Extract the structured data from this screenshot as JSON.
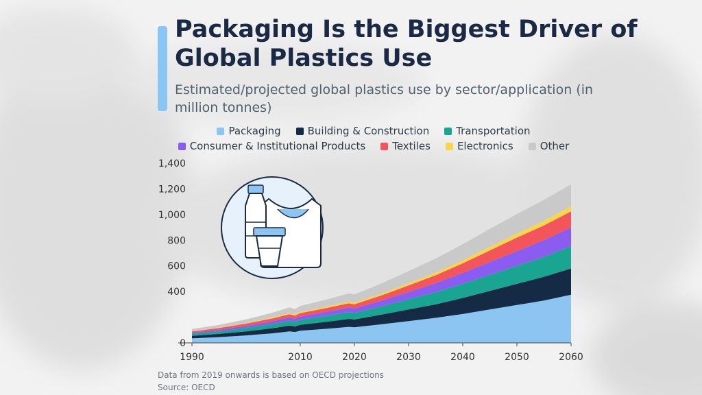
{
  "title": "Packaging Is the Biggest Driver of Global Plastics Use",
  "subtitle": "Estimated/projected global plastics use by sector/application (in million tonnes)",
  "footnote": "Data from 2019 onwards is based on OECD projections",
  "source": "Source: OECD",
  "colors": {
    "Packaging": "#8cc4f2",
    "Building & Construction": "#142a45",
    "Transportation": "#1aa592",
    "Consumer & Institutional Products": "#8b5cf0",
    "Textiles": "#f2565a",
    "Electronics": "#f7d64a",
    "Other": "#c9c9c9"
  },
  "chart_data": {
    "type": "area",
    "stacked": true,
    "title": "Packaging Is the Biggest Driver of Global Plastics Use",
    "ylabel": "",
    "xlim": [
      1990,
      2060
    ],
    "ylim": [
      0,
      1400
    ],
    "yticks": [
      0,
      400,
      600,
      800,
      1000,
      1200,
      1400
    ],
    "ytick_labels": [
      "0",
      "400",
      "600",
      "800",
      "1,000",
      "1,200",
      "1,400"
    ],
    "xticks": [
      1990,
      2010,
      2020,
      2030,
      2040,
      2050,
      2060
    ],
    "xtick_labels": [
      "1990",
      "2010",
      "2020",
      "2030",
      "2040",
      "2050",
      "2060"
    ],
    "legend_position": "top",
    "x": [
      1990,
      1995,
      2000,
      2005,
      2008,
      2009,
      2010,
      2015,
      2019,
      2020,
      2025,
      2030,
      2035,
      2040,
      2045,
      2050,
      2055,
      2060
    ],
    "series": [
      {
        "name": "Packaging",
        "values": [
          35,
          45,
          58,
          75,
          90,
          85,
          95,
          110,
          125,
          122,
          145,
          170,
          195,
          225,
          260,
          295,
          330,
          375
        ]
      },
      {
        "name": "Building & Construction",
        "values": [
          20,
          25,
          32,
          40,
          45,
          43,
          46,
          55,
          62,
          60,
          75,
          90,
          105,
          125,
          145,
          165,
          185,
          205
        ]
      },
      {
        "name": "Transportation",
        "values": [
          15,
          20,
          26,
          33,
          38,
          36,
          39,
          47,
          53,
          52,
          65,
          80,
          95,
          110,
          125,
          140,
          155,
          175
        ]
      },
      {
        "name": "Consumer & Institutional Products",
        "values": [
          10,
          13,
          17,
          22,
          25,
          24,
          26,
          31,
          35,
          34,
          45,
          57,
          70,
          85,
          100,
          115,
          130,
          145
        ]
      },
      {
        "name": "Textiles",
        "values": [
          10,
          13,
          17,
          22,
          25,
          24,
          26,
          30,
          34,
          33,
          40,
          50,
          62,
          75,
          90,
          105,
          115,
          125
        ]
      },
      {
        "name": "Electronics",
        "values": [
          3,
          4,
          5,
          7,
          8,
          8,
          9,
          10,
          12,
          12,
          14,
          17,
          20,
          24,
          28,
          32,
          36,
          40
        ]
      },
      {
        "name": "Other",
        "values": [
          15,
          20,
          28,
          38,
          45,
          43,
          47,
          57,
          65,
          64,
          80,
          95,
          110,
          125,
          140,
          152,
          163,
          170
        ]
      }
    ]
  }
}
